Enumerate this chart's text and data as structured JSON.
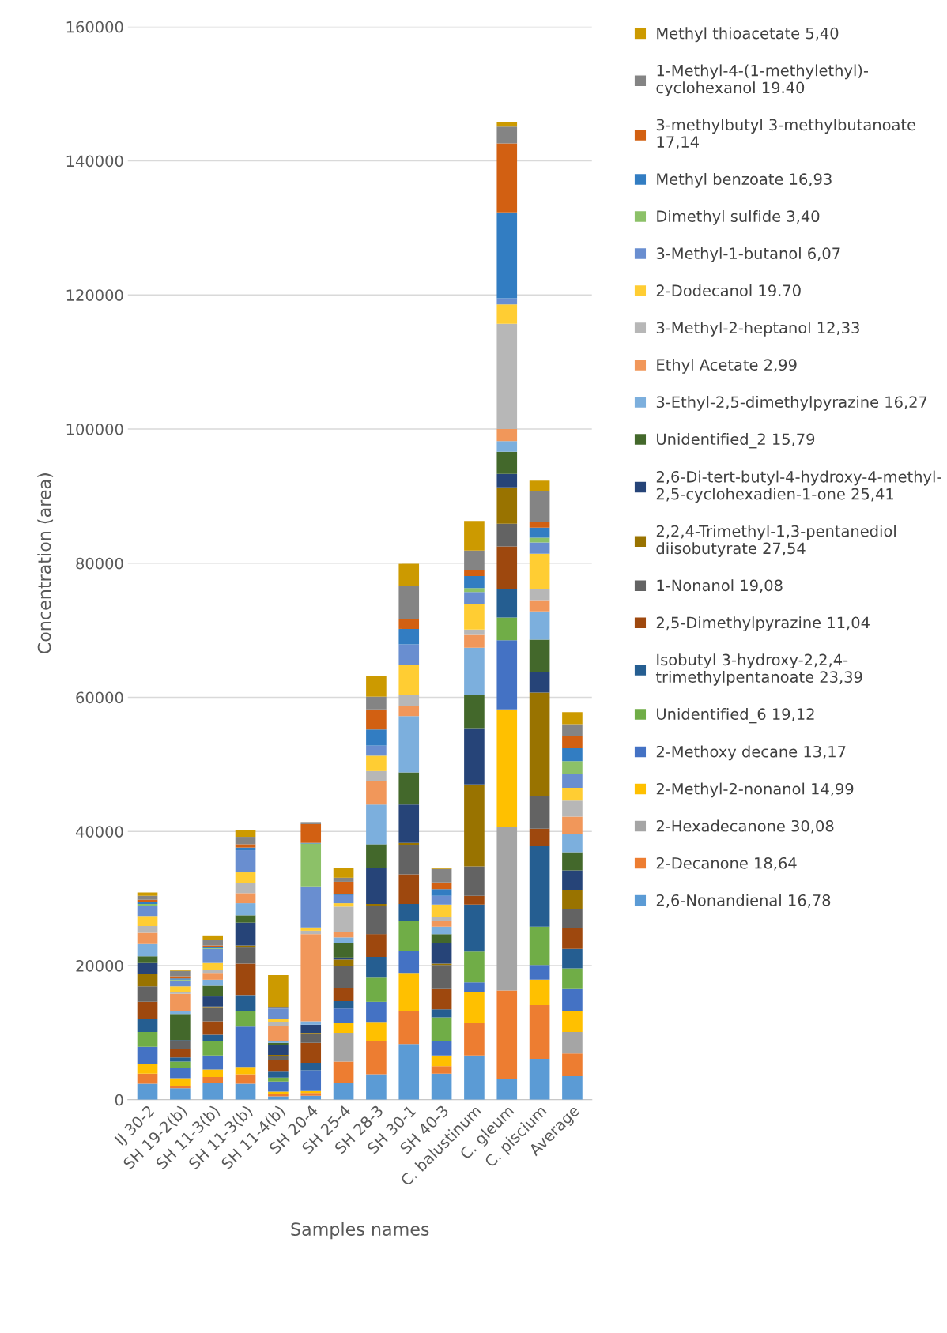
{
  "chart_data": {
    "type": "bar",
    "stacked": true,
    "xlabel": "Samples names",
    "ylabel": "Concentration (area)",
    "categories": [
      "IJ 30-2",
      "SH 19-2(b)",
      "SH 11-3(b)",
      "SH 11-3(b)",
      "SH 11-4(b)",
      "SH 20-4",
      "SH 25-4",
      "SH 28-3",
      "SH 30-1",
      "SH 40-3",
      "C. balustinum",
      "C. gleum",
      "C. piscium",
      "Average"
    ],
    "ylim": [
      0,
      160000
    ],
    "yticks": [
      0,
      20000,
      40000,
      60000,
      80000,
      100000,
      120000,
      140000,
      160000
    ],
    "grid": "y",
    "legend": "right",
    "series": [
      {
        "name": "2,6-Nonandienal 16,78",
        "color": "#5b9bd5",
        "values": [
          2400,
          1700,
          2500,
          2400,
          500,
          600,
          2500,
          3800,
          8300,
          3900,
          6600,
          3100,
          6100,
          3500
        ]
      },
      {
        "name": "2-Decanone 18,64",
        "color": "#ed7d31",
        "values": [
          1500,
          400,
          900,
          1400,
          400,
          400,
          3200,
          4900,
          5000,
          1100,
          4800,
          13200,
          8000,
          3400
        ]
      },
      {
        "name": "2-Hexadecanone 30,08",
        "color": "#a5a5a5",
        "values": [
          0,
          0,
          0,
          0,
          0,
          0,
          4300,
          0,
          0,
          0,
          0,
          24400,
          0,
          3200
        ]
      },
      {
        "name": "2-Methyl-2-nonanol 14,99",
        "color": "#ffc000",
        "values": [
          1400,
          1100,
          1100,
          1100,
          300,
          300,
          1400,
          2800,
          5500,
          1600,
          4700,
          17500,
          3800,
          3200
        ]
      },
      {
        "name": "2-Methoxy decane 13,17",
        "color": "#4472c4",
        "values": [
          2600,
          1600,
          2100,
          6000,
          1500,
          3100,
          2200,
          3100,
          3400,
          2200,
          1400,
          10300,
          2200,
          3200
        ]
      },
      {
        "name": "Unidentified_6 19,12",
        "color": "#70ad47",
        "values": [
          2200,
          900,
          2100,
          2400,
          600,
          0,
          0,
          3600,
          4500,
          3500,
          4600,
          3400,
          5700,
          3100
        ]
      },
      {
        "name": "Isobutyl 3-hydroxy-2,2,4-\ntrimethylpentanoate 23,39",
        "color": "#255e91",
        "values": [
          1900,
          600,
          1000,
          2300,
          900,
          1100,
          1100,
          3100,
          2500,
          1200,
          7000,
          4300,
          12000,
          2900
        ]
      },
      {
        "name": "2,5-Dimethylpyrazine 11,04",
        "color": "#9e480e",
        "values": [
          2600,
          1300,
          2000,
          4700,
          1700,
          3000,
          1900,
          3400,
          4400,
          3000,
          1300,
          6300,
          2600,
          3100
        ]
      },
      {
        "name": "1-Nonanol 19,08",
        "color": "#636363",
        "values": [
          2300,
          1100,
          2000,
          2400,
          600,
          1400,
          3300,
          4200,
          4400,
          3600,
          4400,
          3400,
          4900,
          2800
        ]
      },
      {
        "name": "2,2,4-Trimethyl-1,3-pentanediol\ndiisobutyrate 27,54",
        "color": "#997300",
        "values": [
          1800,
          100,
          200,
          300,
          200,
          100,
          1000,
          300,
          300,
          200,
          12200,
          5400,
          15400,
          2900
        ]
      },
      {
        "name": "2,6-Di-tert-butyl-4-hydroxy-4-methyl-\n2,5-cyclohexadien-1-one 25,41",
        "color": "#264478",
        "values": [
          1700,
          100,
          1500,
          3400,
          1500,
          1200,
          300,
          5400,
          5700,
          3100,
          8400,
          2000,
          3100,
          2900
        ]
      },
      {
        "name": "Unidentified_2 15,79",
        "color": "#43682b",
        "values": [
          1000,
          3900,
          1600,
          1100,
          300,
          0,
          2100,
          3500,
          4800,
          1300,
          5000,
          3300,
          4800,
          2700
        ]
      },
      {
        "name": "3-Ethyl-2,5-dimethylpyrazine 16,27",
        "color": "#7cafdd",
        "values": [
          1800,
          500,
          900,
          1800,
          300,
          500,
          900,
          5900,
          8400,
          1100,
          7000,
          1600,
          4200,
          2700
        ]
      },
      {
        "name": "Ethyl Acetate 2,99",
        "color": "#f1975a",
        "values": [
          1700,
          2500,
          900,
          1500,
          2200,
          13000,
          800,
          3500,
          1500,
          900,
          1900,
          1800,
          1700,
          2600
        ]
      },
      {
        "name": "3-Methyl-2-heptanol 12,33",
        "color": "#b7b7b7",
        "values": [
          1000,
          200,
          500,
          1500,
          600,
          500,
          3800,
          1500,
          1700,
          600,
          800,
          15700,
          1700,
          2400
        ]
      },
      {
        "name": "2-Dodecanol 19.70",
        "color": "#ffcd33",
        "values": [
          1500,
          900,
          1100,
          1600,
          400,
          500,
          500,
          2300,
          4400,
          1800,
          3800,
          2900,
          5200,
          1900
        ]
      },
      {
        "name": "3-Methyl-1-butanol 6,07",
        "color": "#698ed0",
        "values": [
          1500,
          900,
          2100,
          3300,
          1600,
          6100,
          1200,
          1500,
          3100,
          1300,
          1800,
          900,
          1700,
          2000
        ]
      },
      {
        "name": "Dimethyl sulfide 3,40",
        "color": "#8cc168",
        "values": [
          300,
          100,
          100,
          0,
          0,
          6400,
          0,
          0,
          0,
          0,
          600,
          0,
          700,
          2000
        ]
      },
      {
        "name": "Methyl benzoate 16,93",
        "color": "#327dc2",
        "values": [
          300,
          200,
          200,
          400,
          0,
          100,
          100,
          2400,
          2300,
          1000,
          1800,
          12800,
          1500,
          1900
        ]
      },
      {
        "name": "3-methylbutyl 3-methylbutanoate\n17,14",
        "color": "#d26012",
        "values": [
          300,
          300,
          200,
          500,
          0,
          2800,
          1900,
          3000,
          1500,
          1000,
          900,
          10300,
          900,
          1800
        ]
      },
      {
        "name": "1-Methyl-4-(1-methylethyl)-\ncyclohexanol 19.40",
        "color": "#848484",
        "values": [
          600,
          800,
          800,
          1100,
          200,
          300,
          600,
          1900,
          4900,
          2000,
          2900,
          2500,
          4600,
          1800
        ]
      },
      {
        "name": "Methyl thioacetate 5,40",
        "color": "#cc9a00",
        "values": [
          500,
          200,
          700,
          1000,
          4800,
          0,
          1400,
          3100,
          3300,
          100,
          4400,
          700,
          1500,
          1800
        ]
      }
    ]
  }
}
